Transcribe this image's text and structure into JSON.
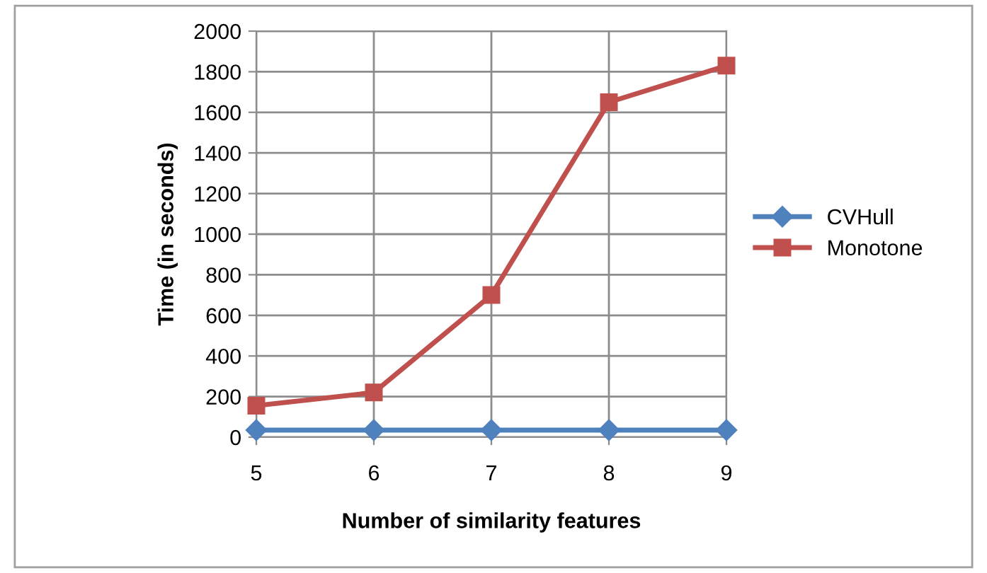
{
  "chart_data": {
    "type": "line",
    "xlabel": "Number of similarity features",
    "ylabel": "Time (in seconds)",
    "categories": [
      "5",
      "6",
      "7",
      "8",
      "9"
    ],
    "series": [
      {
        "name": "CVHull",
        "color": "#4f81bd",
        "values": [
          35,
          35,
          35,
          35,
          35
        ],
        "marker": "diamond"
      },
      {
        "name": "Monotone",
        "color": "#c0504d",
        "values": [
          155,
          220,
          700,
          1650,
          1830
        ],
        "marker": "square"
      }
    ],
    "ylim": [
      0,
      2000
    ],
    "yticks": [
      0,
      200,
      400,
      600,
      800,
      1000,
      1200,
      1400,
      1600,
      1800,
      2000
    ],
    "grid": true,
    "legend": "right",
    "line_style": "solid"
  }
}
